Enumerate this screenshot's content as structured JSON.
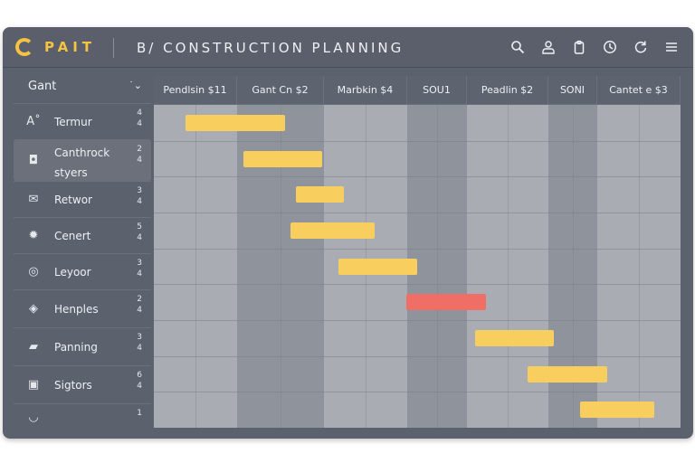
{
  "app": {
    "logo_text": "PAIT",
    "title": "B/ CONSTRUCTION PLANNING"
  },
  "toolbar": {
    "icons": [
      "search-icon",
      "user-icon",
      "clipboard-icon",
      "clock-icon",
      "refresh-icon",
      "menu-icon"
    ]
  },
  "sidebar": {
    "header_label": "Gant",
    "header_chevron": "˙⌄",
    "items": [
      {
        "icon": "font-icon",
        "label": "Termur",
        "num1": "4",
        "num2": "4"
      },
      {
        "icon": "tag-icon",
        "label": "Canthrock styers",
        "num1": "2",
        "num2": "4"
      },
      {
        "icon": "mail-icon",
        "label": "Retwor",
        "num1": "3",
        "num2": "4"
      },
      {
        "icon": "gear-icon",
        "label": "Cenert",
        "num1": "5",
        "num2": "4"
      },
      {
        "icon": "target-icon",
        "label": "Leyoor",
        "num1": "3",
        "num2": "4"
      },
      {
        "icon": "box-icon",
        "label": "Henples",
        "num1": "2",
        "num2": "4"
      },
      {
        "icon": "folder-icon",
        "label": "Panning",
        "num1": "3",
        "num2": "4"
      },
      {
        "icon": "bag-icon",
        "label": "Sigtors",
        "num1": "6",
        "num2": "4"
      },
      {
        "icon": "more-icon",
        "label": "",
        "num1": "1",
        "num2": ""
      }
    ]
  },
  "gantt": {
    "columns": [
      {
        "label": "Pendlsin $11"
      },
      {
        "label": "Gant Cn $2"
      },
      {
        "label": "Marbkin $4"
      },
      {
        "label": "SOU1"
      },
      {
        "label": "Peadlin $2"
      },
      {
        "label": "SONI"
      },
      {
        "label": "Cantet e $3"
      }
    ],
    "tasks": [
      {
        "start": 0.06,
        "end": 0.25,
        "status": "normal"
      },
      {
        "start": 0.17,
        "end": 0.32,
        "status": "normal"
      },
      {
        "start": 0.27,
        "end": 0.36,
        "status": "normal"
      },
      {
        "start": 0.26,
        "end": 0.42,
        "status": "normal"
      },
      {
        "start": 0.35,
        "end": 0.5,
        "status": "normal"
      },
      {
        "start": 0.48,
        "end": 0.63,
        "status": "critical"
      },
      {
        "start": 0.61,
        "end": 0.76,
        "status": "normal"
      },
      {
        "start": 0.71,
        "end": 0.86,
        "status": "normal"
      },
      {
        "start": 0.81,
        "end": 0.95,
        "status": "normal"
      }
    ],
    "colors": {
      "normal": "#f8cf5f",
      "critical": "#ef6f66"
    }
  },
  "colors": {
    "accent": "#f5c242",
    "shade_light": "#a9acb3",
    "shade_dark": "#8f939b"
  }
}
